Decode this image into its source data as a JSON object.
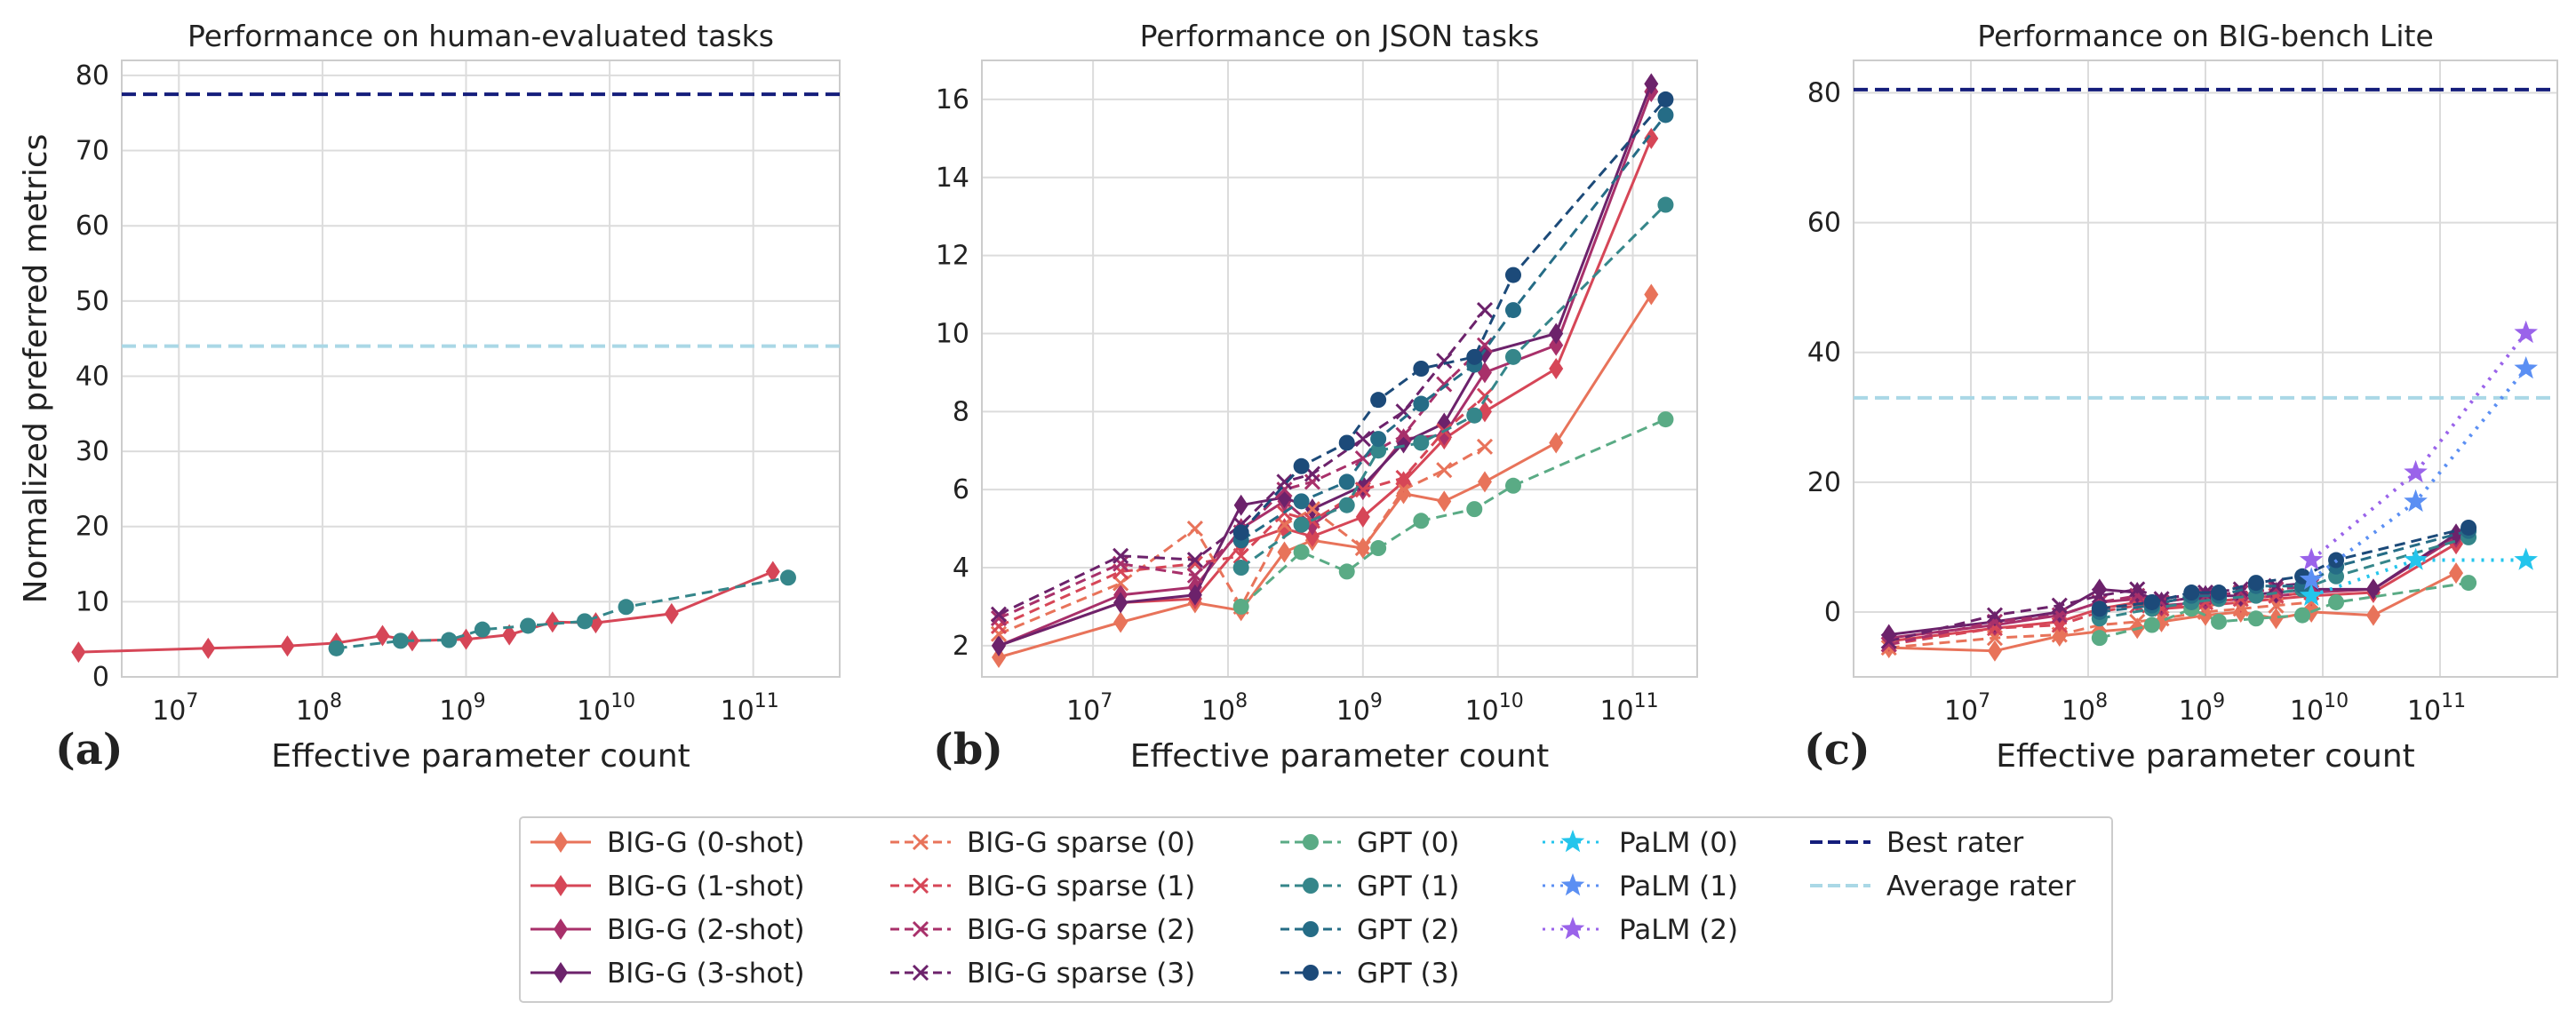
{
  "colors": {
    "BIG-G (0-shot)": "#e8735a",
    "BIG-G (1-shot)": "#d64657",
    "BIG-G (2-shot)": "#a8306a",
    "BIG-G (3-shot)": "#6c226b",
    "BIG-G sparse (0)": "#e8735a",
    "BIG-G sparse (1)": "#d64657",
    "BIG-G sparse (2)": "#a8306a",
    "BIG-G sparse (3)": "#6c226b",
    "GPT (0)": "#5aab85",
    "GPT (1)": "#35868a",
    "GPT (2)": "#256c86",
    "GPT (3)": "#1c4a79",
    "PaLM (0)": "#24c5ec",
    "PaLM (1)": "#5b8ff3",
    "PaLM (2)": "#9a63ea",
    "Best rater": "#141d7b",
    "Average rater": "#aad8e6",
    "grid": "#dcdcdc",
    "frame": "#cccccc"
  },
  "panel_labels": [
    "(a)",
    "(b)",
    "(c)"
  ],
  "legend": {
    "columns": [
      [
        {
          "label": "BIG-G (0-shot)",
          "marker": "diamond",
          "dash": "solid"
        },
        {
          "label": "BIG-G (1-shot)",
          "marker": "diamond",
          "dash": "solid"
        },
        {
          "label": "BIG-G (2-shot)",
          "marker": "diamond",
          "dash": "solid"
        },
        {
          "label": "BIG-G (3-shot)",
          "marker": "diamond",
          "dash": "solid"
        }
      ],
      [
        {
          "label": "BIG-G sparse (0)",
          "marker": "x",
          "dash": "dashed"
        },
        {
          "label": "BIG-G sparse (1)",
          "marker": "x",
          "dash": "dashed"
        },
        {
          "label": "BIG-G sparse (2)",
          "marker": "x",
          "dash": "dashed"
        },
        {
          "label": "BIG-G sparse (3)",
          "marker": "x",
          "dash": "dashed"
        }
      ],
      [
        {
          "label": "GPT (0)",
          "marker": "circle",
          "dash": "dashed"
        },
        {
          "label": "GPT (1)",
          "marker": "circle",
          "dash": "dashed"
        },
        {
          "label": "GPT (2)",
          "marker": "circle",
          "dash": "dashed"
        },
        {
          "label": "GPT (3)",
          "marker": "circle",
          "dash": "dashed"
        }
      ],
      [
        {
          "label": "PaLM (0)",
          "marker": "star",
          "dash": "dotted"
        },
        {
          "label": "PaLM (1)",
          "marker": "star",
          "dash": "dotted"
        },
        {
          "label": "PaLM (2)",
          "marker": "star",
          "dash": "dotted"
        }
      ],
      [
        {
          "label": "Best rater",
          "marker": "none",
          "dash": "dashed"
        },
        {
          "label": "Average rater",
          "marker": "none",
          "dash": "dashed"
        }
      ]
    ]
  },
  "chart_data": [
    {
      "type": "line",
      "title": "Performance on human-evaluated tasks",
      "xlabel": "Effective parameter count",
      "ylabel": "Normalized preferred metrics",
      "xscale": "log",
      "xlim": [
        4000000,
        400000000000
      ],
      "ylim": [
        0,
        82
      ],
      "xticks": [
        10000000,
        100000000,
        1000000000,
        10000000000,
        100000000000
      ],
      "xtick_labels": [
        [
          "10",
          "7"
        ],
        [
          "10",
          "8"
        ],
        [
          "10",
          "9"
        ],
        [
          "10",
          "10"
        ],
        [
          "10",
          "11"
        ]
      ],
      "yticks": [
        0,
        10,
        20,
        30,
        40,
        50,
        60,
        70,
        80
      ],
      "grid": true,
      "hlines": [
        {
          "name": "Best rater",
          "y": 77.5
        },
        {
          "name": "Average rater",
          "y": 44
        }
      ],
      "series": [
        {
          "name": "BIG-G (1-shot)",
          "x": [
            2000000,
            16000000,
            57000000,
            125000000,
            262000000,
            422000000,
            1000000000,
            2000000000,
            4000000000,
            8000000000,
            27000000000,
            137000000000
          ],
          "y": [
            3.3,
            3.8,
            4.1,
            4.5,
            5.5,
            4.8,
            5.0,
            5.6,
            7.3,
            7.2,
            8.4,
            14
          ]
        },
        {
          "name": "GPT (1)",
          "x": [
            125000000,
            350000000,
            760000000,
            1300000000,
            2700000000,
            6700000000,
            13000000000,
            175000000000
          ],
          "y": [
            3.8,
            4.8,
            4.9,
            6.3,
            6.8,
            7.4,
            9.3,
            13.2
          ]
        }
      ]
    },
    {
      "type": "line",
      "title": "Performance on JSON tasks",
      "xlabel": "Effective parameter count",
      "ylabel": "",
      "xscale": "log",
      "xlim": [
        1500000,
        300000000000
      ],
      "ylim": [
        1.2,
        17
      ],
      "xticks": [
        10000000,
        100000000,
        1000000000,
        10000000000,
        100000000000
      ],
      "xtick_labels": [
        [
          "10",
          "7"
        ],
        [
          "10",
          "8"
        ],
        [
          "10",
          "9"
        ],
        [
          "10",
          "10"
        ],
        [
          "10",
          "11"
        ]
      ],
      "yticks": [
        2,
        4,
        6,
        8,
        10,
        12,
        14,
        16
      ],
      "grid": true,
      "hlines": [],
      "series": [
        {
          "name": "BIG-G (0-shot)",
          "x": [
            2000000,
            16000000,
            57000000,
            125000000,
            262000000,
            422000000,
            1000000000,
            2000000000,
            4000000000,
            8000000000,
            27000000000,
            137000000000
          ],
          "y": [
            1.7,
            2.6,
            3.1,
            2.9,
            4.4,
            4.7,
            4.5,
            5.9,
            5.7,
            6.2,
            7.2,
            11.0
          ]
        },
        {
          "name": "BIG-G (1-shot)",
          "x": [
            2000000,
            16000000,
            57000000,
            125000000,
            262000000,
            422000000,
            1000000000,
            2000000000,
            4000000000,
            8000000000,
            27000000000,
            137000000000
          ],
          "y": [
            2.0,
            3.1,
            3.2,
            4.6,
            5.0,
            4.8,
            5.3,
            6.2,
            7.3,
            8.0,
            9.1,
            15.0
          ]
        },
        {
          "name": "BIG-G (2-shot)",
          "x": [
            2000000,
            16000000,
            57000000,
            125000000,
            262000000,
            422000000,
            1000000000,
            2000000000,
            4000000000,
            8000000000,
            27000000000,
            137000000000
          ],
          "y": [
            2.0,
            3.3,
            3.5,
            5.0,
            5.7,
            5.1,
            6.0,
            7.3,
            7.4,
            9.0,
            9.7,
            16.2
          ]
        },
        {
          "name": "BIG-G (3-shot)",
          "x": [
            2000000,
            16000000,
            57000000,
            125000000,
            262000000,
            422000000,
            1000000000,
            2000000000,
            4000000000,
            8000000000,
            27000000000,
            137000000000
          ],
          "y": [
            2.0,
            3.1,
            3.3,
            5.6,
            5.8,
            5.5,
            6.1,
            7.2,
            7.7,
            9.5,
            10.0,
            16.4
          ]
        },
        {
          "name": "BIG-G sparse (0)",
          "x": [
            2000000,
            16000000,
            57000000,
            125000000,
            262000000,
            422000000,
            1000000000,
            2000000000,
            4000000000,
            8000000000
          ],
          "y": [
            2.3,
            3.6,
            5.0,
            3.0,
            5.1,
            5.5,
            4.5,
            6.0,
            6.5,
            7.1
          ]
        },
        {
          "name": "BIG-G sparse (1)",
          "x": [
            2000000,
            16000000,
            57000000,
            125000000,
            262000000,
            422000000,
            1000000000,
            2000000000,
            4000000000,
            8000000000
          ],
          "y": [
            2.5,
            3.9,
            4.1,
            4.3,
            5.4,
            5.2,
            6.0,
            6.3,
            7.5,
            8.4
          ]
        },
        {
          "name": "BIG-G sparse (2)",
          "x": [
            2000000,
            16000000,
            57000000,
            125000000,
            262000000,
            422000000,
            1000000000,
            2000000000,
            4000000000,
            8000000000
          ],
          "y": [
            2.7,
            4.1,
            3.8,
            4.9,
            6.0,
            6.2,
            6.8,
            7.4,
            8.7,
            9.7
          ]
        },
        {
          "name": "BIG-G sparse (3)",
          "x": [
            2000000,
            16000000,
            57000000,
            125000000,
            262000000,
            422000000,
            1000000000,
            2000000000,
            4000000000,
            8000000000
          ],
          "y": [
            2.8,
            4.3,
            4.2,
            5.1,
            6.2,
            6.4,
            7.3,
            8.0,
            9.3,
            10.6
          ]
        },
        {
          "name": "GPT (0)",
          "x": [
            125000000,
            350000000,
            760000000,
            1300000000,
            2700000000,
            6700000000,
            13000000000,
            175000000000
          ],
          "y": [
            3.0,
            4.4,
            3.9,
            4.5,
            5.2,
            5.5,
            6.1,
            7.8
          ]
        },
        {
          "name": "GPT (1)",
          "x": [
            125000000,
            350000000,
            760000000,
            1300000000,
            2700000000,
            6700000000,
            13000000000,
            175000000000
          ],
          "y": [
            4.0,
            5.1,
            5.6,
            7.0,
            7.2,
            7.9,
            9.4,
            13.3
          ]
        },
        {
          "name": "GPT (2)",
          "x": [
            125000000,
            350000000,
            760000000,
            1300000000,
            2700000000,
            6700000000,
            13000000000,
            175000000000
          ],
          "y": [
            4.7,
            5.7,
            6.2,
            7.3,
            8.2,
            9.2,
            10.6,
            15.6
          ]
        },
        {
          "name": "GPT (3)",
          "x": [
            125000000,
            350000000,
            760000000,
            1300000000,
            2700000000,
            6700000000,
            13000000000,
            175000000000
          ],
          "y": [
            4.9,
            6.6,
            7.2,
            8.3,
            9.1,
            9.4,
            11.5,
            16.0
          ]
        }
      ]
    },
    {
      "type": "line",
      "title": "Performance on BIG-bench Lite",
      "xlabel": "Effective parameter count",
      "ylabel": "",
      "xscale": "log",
      "xlim": [
        1000000,
        1000000000000
      ],
      "ylim": [
        -10,
        85
      ],
      "xticks": [
        10000000,
        100000000,
        1000000000,
        10000000000,
        100000000000
      ],
      "xtick_labels": [
        [
          "10",
          "7"
        ],
        [
          "10",
          "8"
        ],
        [
          "10",
          "9"
        ],
        [
          "10",
          "10"
        ],
        [
          "10",
          "11"
        ]
      ],
      "yticks": [
        0,
        20,
        40,
        60,
        80
      ],
      "grid": true,
      "hlines": [
        {
          "name": "Best rater",
          "y": 80.5
        },
        {
          "name": "Average rater",
          "y": 33
        }
      ],
      "series": [
        {
          "name": "BIG-G (0-shot)",
          "x": [
            2000000,
            16000000,
            57000000,
            125000000,
            262000000,
            422000000,
            1000000000,
            2000000000,
            4000000000,
            8000000000,
            27000000000,
            137000000000
          ],
          "y": [
            -5.5,
            -6.0,
            -3.7,
            -3.0,
            -2.5,
            -1.5,
            -0.5,
            0.0,
            -1.0,
            0.0,
            -0.5,
            6.0
          ]
        },
        {
          "name": "BIG-G (1-shot)",
          "x": [
            2000000,
            16000000,
            57000000,
            125000000,
            262000000,
            422000000,
            1000000000,
            2000000000,
            4000000000,
            8000000000,
            27000000000,
            137000000000
          ],
          "y": [
            -4.5,
            -2.5,
            -1.5,
            0.5,
            1.5,
            0.5,
            1.0,
            1.5,
            2.0,
            2.5,
            3.0,
            10.5
          ]
        },
        {
          "name": "BIG-G (2-shot)",
          "x": [
            2000000,
            16000000,
            57000000,
            125000000,
            262000000,
            422000000,
            1000000000,
            2000000000,
            4000000000,
            8000000000,
            27000000000,
            137000000000
          ],
          "y": [
            -4.0,
            -2.0,
            -0.5,
            1.5,
            2.0,
            1.0,
            1.5,
            2.0,
            2.5,
            3.0,
            3.5,
            11.5
          ]
        },
        {
          "name": "BIG-G (3-shot)",
          "x": [
            2000000,
            16000000,
            57000000,
            125000000,
            262000000,
            422000000,
            1000000000,
            2000000000,
            4000000000,
            8000000000,
            27000000000,
            137000000000
          ],
          "y": [
            -3.5,
            -1.5,
            0.0,
            3.5,
            3.0,
            1.5,
            2.5,
            2.5,
            3.0,
            3.5,
            3.5,
            12.0
          ]
        },
        {
          "name": "BIG-G sparse (0)",
          "x": [
            2000000,
            16000000,
            57000000,
            125000000,
            262000000,
            422000000,
            1000000000,
            2000000000,
            4000000000,
            8000000000
          ],
          "y": [
            -5.5,
            -4.0,
            -3.5,
            -2.0,
            -1.5,
            -1.0,
            0.0,
            0.5,
            1.0,
            1.5
          ]
        },
        {
          "name": "BIG-G sparse (1)",
          "x": [
            2000000,
            16000000,
            57000000,
            125000000,
            262000000,
            422000000,
            1000000000,
            2000000000,
            4000000000,
            8000000000
          ],
          "y": [
            -5.0,
            -2.5,
            -2.0,
            0.0,
            1.0,
            0.5,
            1.5,
            2.0,
            2.5,
            3.0
          ]
        },
        {
          "name": "BIG-G sparse (2)",
          "x": [
            2000000,
            16000000,
            57000000,
            125000000,
            262000000,
            422000000,
            1000000000,
            2000000000,
            4000000000,
            8000000000
          ],
          "y": [
            -5.0,
            -1.5,
            -0.5,
            1.5,
            2.5,
            1.5,
            2.5,
            3.0,
            3.5,
            4.0
          ]
        },
        {
          "name": "BIG-G sparse (3)",
          "x": [
            2000000,
            16000000,
            57000000,
            125000000,
            262000000,
            422000000,
            1000000000,
            2000000000,
            4000000000,
            8000000000
          ],
          "y": [
            -4.5,
            -0.5,
            1.0,
            2.5,
            3.5,
            2.0,
            3.0,
            3.5,
            4.0,
            4.5
          ]
        },
        {
          "name": "GPT (0)",
          "x": [
            125000000,
            350000000,
            760000000,
            1300000000,
            2700000000,
            6700000000,
            13000000000,
            175000000000
          ],
          "y": [
            -4.0,
            -2.0,
            0.5,
            -1.5,
            -1.0,
            -0.5,
            1.5,
            4.5
          ]
        },
        {
          "name": "GPT (1)",
          "x": [
            125000000,
            350000000,
            760000000,
            1300000000,
            2700000000,
            6700000000,
            13000000000,
            175000000000
          ],
          "y": [
            -1.0,
            0.5,
            1.5,
            2.0,
            2.5,
            3.5,
            5.5,
            11.5
          ]
        },
        {
          "name": "GPT (2)",
          "x": [
            125000000,
            350000000,
            760000000,
            1300000000,
            2700000000,
            6700000000,
            13000000000,
            175000000000
          ],
          "y": [
            0.0,
            1.0,
            2.5,
            2.5,
            4.0,
            4.0,
            7.0,
            12.5
          ]
        },
        {
          "name": "GPT (3)",
          "x": [
            125000000,
            350000000,
            760000000,
            1300000000,
            2700000000,
            6700000000,
            13000000000,
            175000000000
          ],
          "y": [
            0.5,
            1.5,
            3.0,
            3.0,
            4.5,
            5.5,
            8.0,
            13.0
          ]
        },
        {
          "name": "PaLM (0)",
          "x": [
            8000000000,
            62000000000,
            540000000000
          ],
          "y": [
            2.5,
            8.0,
            8.0
          ]
        },
        {
          "name": "PaLM (1)",
          "x": [
            8000000000,
            62000000000,
            540000000000
          ],
          "y": [
            5.0,
            17.0,
            37.5
          ]
        },
        {
          "name": "PaLM (2)",
          "x": [
            8000000000,
            62000000000,
            540000000000
          ],
          "y": [
            8.0,
            21.5,
            43.0
          ]
        }
      ]
    }
  ]
}
